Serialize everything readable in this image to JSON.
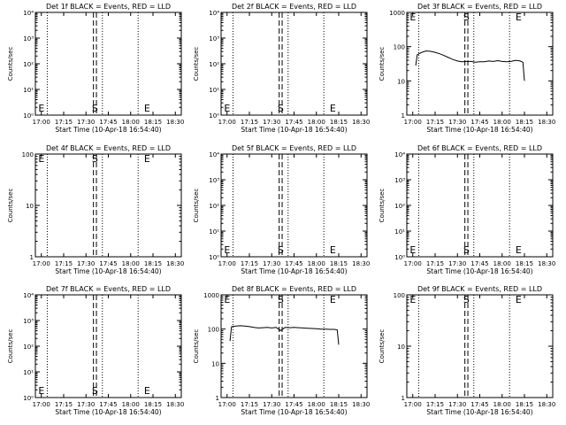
{
  "common": {
    "xlabel": "Start Time (10-Apr-18 16:54:40)",
    "ylabel": "Counts/sec",
    "x_ticks": [
      "17:00",
      "17:15",
      "17:30",
      "17:45",
      "18:00",
      "18:15",
      "18:30"
    ],
    "marker_labels": {
      "E": "E",
      "S": "S"
    }
  },
  "chart_data": [
    {
      "type": "line",
      "title": "Det 1f BLACK = Events, RED = LLD",
      "yscale": "log",
      "ylim": [
        1,
        10000
      ],
      "y_ticks": [
        "10⁰",
        "10¹",
        "10²",
        "10³",
        "10⁴"
      ],
      "y_tick_values": [
        1,
        10,
        100,
        1000,
        10000
      ],
      "series": []
    },
    {
      "type": "line",
      "title": "Det 2f BLACK = Events, RED = LLD",
      "yscale": "log",
      "ylim": [
        1,
        10000
      ],
      "y_ticks": [
        "10⁰",
        "10¹",
        "10²",
        "10³",
        "10⁴"
      ],
      "y_tick_values": [
        1,
        10,
        100,
        1000,
        10000
      ],
      "series": []
    },
    {
      "type": "line",
      "title": "Det 3f BLACK = Events, RED = LLD",
      "yscale": "log",
      "ylim": [
        1,
        1000
      ],
      "y_ticks": [
        "1",
        "10",
        "100",
        "1000"
      ],
      "y_tick_values": [
        1,
        10,
        100,
        1000
      ],
      "series": [
        {
          "x": [
            "17:02",
            "17:03",
            "17:06",
            "17:09",
            "17:12",
            "17:15",
            "17:18",
            "17:21",
            "17:24",
            "17:27",
            "17:30",
            "17:33",
            "17:36",
            "17:39",
            "17:42",
            "17:45",
            "17:48",
            "17:51",
            "17:54",
            "17:57",
            "18:00",
            "18:03",
            "18:06",
            "18:09",
            "18:12",
            "18:14",
            "18:15"
          ],
          "y": [
            28,
            58,
            68,
            75,
            73,
            68,
            62,
            55,
            48,
            42,
            38,
            36,
            37,
            37,
            35,
            36,
            36,
            38,
            37,
            39,
            37,
            36,
            37,
            40,
            38,
            35,
            10
          ]
        }
      ]
    },
    {
      "type": "line",
      "title": "Det 4f BLACK = Events, RED = LLD",
      "yscale": "log",
      "ylim": [
        1,
        100
      ],
      "y_ticks": [
        "1",
        "10",
        "100"
      ],
      "y_tick_values": [
        1,
        10,
        100
      ],
      "series": []
    },
    {
      "type": "line",
      "title": "Det 5f BLACK = Events, RED = LLD",
      "yscale": "log",
      "ylim": [
        1,
        10000
      ],
      "y_ticks": [
        "10⁰",
        "10¹",
        "10²",
        "10³",
        "10⁴"
      ],
      "y_tick_values": [
        1,
        10,
        100,
        1000,
        10000
      ],
      "series": []
    },
    {
      "type": "line",
      "title": "Det 6f BLACK = Events, RED = LLD",
      "yscale": "log",
      "ylim": [
        1,
        10000
      ],
      "y_ticks": [
        "10⁰",
        "10¹",
        "10²",
        "10³",
        "10⁴"
      ],
      "y_tick_values": [
        1,
        10,
        100,
        1000,
        10000
      ],
      "series": []
    },
    {
      "type": "line",
      "title": "Det 7f BLACK = Events, RED = LLD",
      "yscale": "log",
      "ylim": [
        1,
        10000
      ],
      "y_ticks": [
        "10⁰",
        "10¹",
        "10²",
        "10³",
        "10⁴"
      ],
      "y_tick_values": [
        1,
        10,
        100,
        1000,
        10000
      ],
      "series": []
    },
    {
      "type": "line",
      "title": "Det 8f BLACK = Events, RED = LLD",
      "yscale": "log",
      "ylim": [
        1,
        1000
      ],
      "y_ticks": [
        "1",
        "10",
        "100",
        "1000"
      ],
      "y_tick_values": [
        1,
        10,
        100,
        1000
      ],
      "series": [
        {
          "x": [
            "17:02",
            "17:03",
            "17:06",
            "17:09",
            "17:12",
            "17:15",
            "17:18",
            "17:21",
            "17:24",
            "17:27",
            "17:30",
            "17:33",
            "17:36",
            "17:39",
            "17:42",
            "17:45",
            "17:48",
            "17:51",
            "17:54",
            "17:57",
            "18:00",
            "18:03",
            "18:06",
            "18:09",
            "18:12",
            "18:14",
            "18:15"
          ],
          "y": [
            45,
            118,
            122,
            125,
            122,
            118,
            112,
            108,
            110,
            112,
            108,
            112,
            90,
            112,
            110,
            112,
            110,
            108,
            106,
            104,
            102,
            100,
            100,
            98,
            98,
            95,
            35
          ]
        }
      ]
    },
    {
      "type": "line",
      "title": "Det 9f BLACK = Events, RED = LLD",
      "yscale": "log",
      "ylim": [
        1,
        100
      ],
      "y_ticks": [
        "1",
        "10",
        "100"
      ],
      "y_tick_values": [
        1,
        10,
        100
      ],
      "series": []
    }
  ]
}
